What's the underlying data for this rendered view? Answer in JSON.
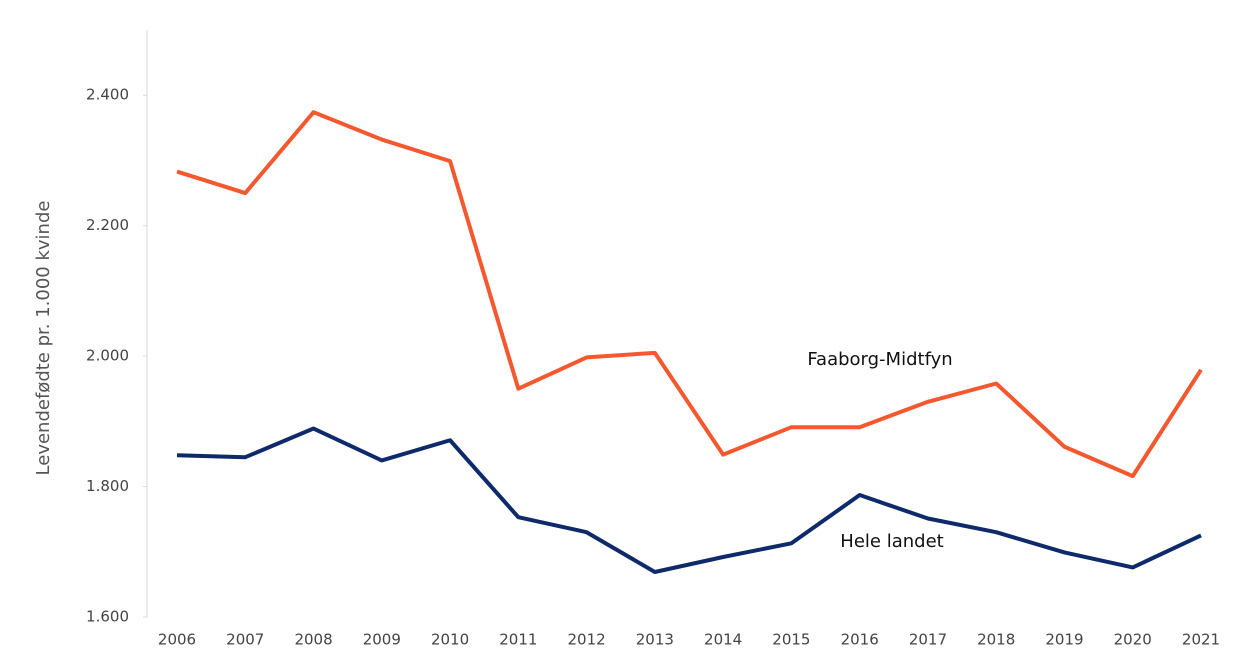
{
  "chart_data": {
    "type": "line",
    "ylabel": "Levendefødte pr. 1.000 kvinde",
    "categories": [
      "2006",
      "2007",
      "2008",
      "2009",
      "2010",
      "2011",
      "2012",
      "2013",
      "2014",
      "2015",
      "2016",
      "2017",
      "2018",
      "2019",
      "2020",
      "2021"
    ],
    "series": [
      {
        "name": "Faaborg-Midtfyn",
        "color": "#f4582f",
        "values": [
          2283,
          2250,
          2374,
          2332,
          2299,
          1950,
          1998,
          2005,
          1849,
          1891,
          1891,
          1930,
          1958,
          1861,
          1816,
          1979
        ]
      },
      {
        "name": "Hele landet",
        "color": "#0e2a6b",
        "values": [
          1848,
          1845,
          1889,
          1840,
          1871,
          1753,
          1730,
          1669,
          1692,
          1713,
          1787,
          1751,
          1730,
          1699,
          1676,
          1725
        ]
      }
    ],
    "ylim": [
      1600,
      2500
    ],
    "yticks": [
      {
        "value": 1600,
        "label": "1.600"
      },
      {
        "value": 1800,
        "label": "1.800"
      },
      {
        "value": 2000,
        "label": "2.000"
      },
      {
        "value": 2200,
        "label": "2.200"
      },
      {
        "value": 2400,
        "label": "2.400"
      }
    ],
    "grid": false
  }
}
